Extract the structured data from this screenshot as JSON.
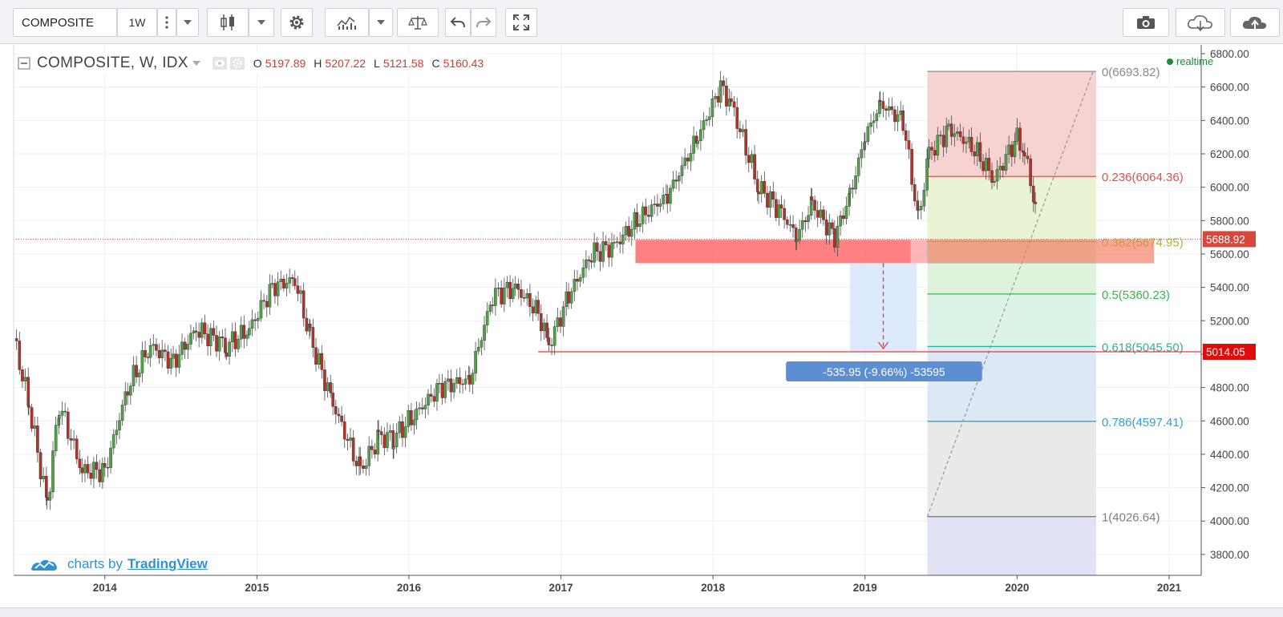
{
  "toolbar": {
    "symbol": "COMPOSITE",
    "resolution": "1W",
    "icons": [
      "more-icon",
      "dropdown-icon",
      "candle-style-icon",
      "dropdown-icon",
      "settings-gear-icon",
      "indicators-icon",
      "dropdown-icon",
      "compare-scale-icon",
      "undo-icon",
      "redo-icon",
      "fullscreen-icon",
      "camera-icon",
      "cloud-download-icon",
      "cloud-upload-icon"
    ]
  },
  "legend": {
    "title": "COMPOSITE, W, IDX",
    "o_label": "O",
    "o": "5197.89",
    "h_label": "H",
    "h": "5207.22",
    "l_label": "L",
    "l": "5121.58",
    "c_label": "C",
    "c": "5160.43",
    "realtime": "realtime"
  },
  "brand": {
    "prefix": "charts by",
    "name": "TradingView"
  },
  "colors": {
    "up": "#52a049",
    "down": "#b5322a",
    "accent": "#2d93d6"
  },
  "chart_data": {
    "type": "candlestick",
    "title": "COMPOSITE, W, IDX",
    "xlim": [
      2013.4,
      2021.3
    ],
    "ylim": [
      3680,
      6850
    ],
    "grid": true,
    "x_ticks": [
      "2014",
      "2015",
      "2016",
      "2017",
      "2018",
      "2019",
      "2020",
      "2021"
    ],
    "y_ticks": [
      "6800.00",
      "6600.00",
      "6400.00",
      "6200.00",
      "6000.00",
      "5800.00",
      "5600.00",
      "5400.00",
      "5200.00",
      "5000.00",
      "4800.00",
      "4600.00",
      "4400.00",
      "4200.00",
      "4000.00",
      "3800.00"
    ],
    "price_series": {
      "x": [
        2013.4,
        2013.5,
        2013.62,
        2013.7,
        2013.85,
        2014.0,
        2014.15,
        2014.3,
        2014.45,
        2014.6,
        2014.8,
        2014.95,
        2015.1,
        2015.25,
        2015.35,
        2015.5,
        2015.68,
        2015.8,
        2015.9,
        2016.05,
        2016.2,
        2016.4,
        2016.55,
        2016.7,
        2016.85,
        2016.92,
        2017.05,
        2017.2,
        2017.35,
        2017.5,
        2017.7,
        2017.9,
        2018.05,
        2018.12,
        2018.3,
        2018.45,
        2018.55,
        2018.65,
        2018.8,
        2018.9,
        2019.0,
        2019.1,
        2019.25,
        2019.35,
        2019.42,
        2019.55,
        2019.7,
        2019.85,
        2020.0,
        2020.05,
        2020.12
      ],
      "close": [
        5100,
        4700,
        4100,
        4700,
        4300,
        4300,
        4800,
        5050,
        4950,
        5150,
        5050,
        5150,
        5400,
        5450,
        5100,
        4700,
        4300,
        4500,
        4500,
        4650,
        4800,
        4850,
        5350,
        5400,
        5250,
        5050,
        5350,
        5600,
        5650,
        5800,
        5950,
        6300,
        6600,
        6500,
        6000,
        5850,
        5700,
        5900,
        5700,
        5950,
        6300,
        6500,
        6400,
        5800,
        6200,
        6350,
        6250,
        6050,
        6300,
        6200,
        5900
      ]
    },
    "annotations": {
      "support_zone": [
        5545,
        5685
      ],
      "target_line": 5014.05,
      "projection_label": "-535.95 (-9.66%) -53595",
      "last_price": "5688.92",
      "target_price": "5014.05"
    },
    "fibonacci": [
      {
        "label": "0(6693.82)",
        "value": 6693.82,
        "color": "#8a8a8a"
      },
      {
        "label": "0.236(6064.36)",
        "value": 6064.36,
        "color": "#d9534f"
      },
      {
        "label": "0.382(5674.95)",
        "value": 5674.95,
        "color": "#9bbd3a"
      },
      {
        "label": "0.5(5360.23)",
        "value": 5360.23,
        "color": "#3cb44b"
      },
      {
        "label": "0.618(5045.50)",
        "value": 5045.5,
        "color": "#2fb38f"
      },
      {
        "label": "0.786(4597.41)",
        "value": 4597.41,
        "color": "#3b9fd0"
      },
      {
        "label": "1(4026.64)",
        "value": 4026.64,
        "color": "#7f7f7f"
      }
    ]
  }
}
